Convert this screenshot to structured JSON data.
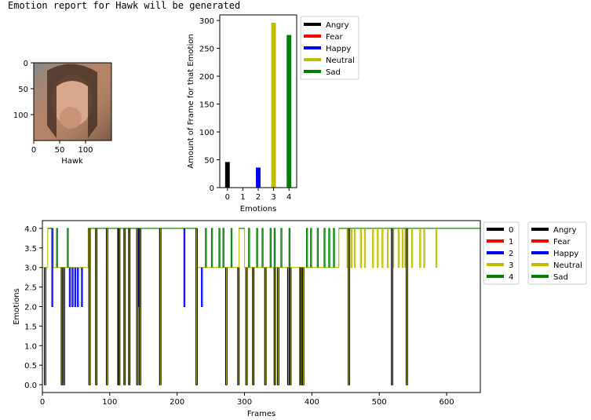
{
  "header": {
    "text": "Emotion report for Hawk will be generated"
  },
  "colors": {
    "black": "#000000",
    "red": "#ff0000",
    "blue": "#0000ff",
    "yellow": "#bfbf00",
    "green": "#008000"
  },
  "chart_data": [
    {
      "type": "image",
      "xlabel": "Hawk",
      "xticks": [
        0,
        50,
        100
      ],
      "yticks": [
        0,
        50,
        100
      ],
      "xlim": [
        0,
        150
      ],
      "ylim": [
        150,
        0
      ]
    },
    {
      "type": "bar",
      "categories": [
        0,
        1,
        2,
        3,
        4
      ],
      "values": [
        46,
        0,
        36,
        296,
        274
      ],
      "colors": [
        "#000000",
        "#ff0000",
        "#0000ff",
        "#bfbf00",
        "#008000"
      ],
      "xlabel": "Emotions",
      "ylabel": "Amount of Frame for that Emotion",
      "ylim": [
        0,
        310
      ],
      "yticks": [
        0,
        50,
        100,
        150,
        200,
        250,
        300
      ],
      "legend": {
        "placement": "right-outside",
        "entries": [
          "Angry",
          "Fear",
          "Happy",
          "Neutral",
          "Sad"
        ]
      }
    },
    {
      "type": "line",
      "xlabel": "Frames",
      "ylabel": "Emotions",
      "xlim": [
        0,
        650
      ],
      "ylim": [
        -0.2,
        4.2
      ],
      "xticks": [
        0,
        100,
        200,
        300,
        400,
        500,
        600
      ],
      "yticks": [
        0.0,
        0.5,
        1.0,
        1.5,
        2.0,
        2.5,
        3.0,
        3.5,
        4.0
      ],
      "series_colors": [
        "#000000",
        "#ff0000",
        "#0000ff",
        "#bfbf00",
        "#008000"
      ],
      "legend1": {
        "placement": "right-outside",
        "entries": [
          "0",
          "1",
          "2",
          "3",
          "4"
        ]
      },
      "legend2": {
        "placement": "right-outside",
        "entries": [
          "Angry",
          "Fear",
          "Happy",
          "Neutral",
          "Sad"
        ]
      },
      "segments": [
        {
          "from": 0,
          "to": 8,
          "value": 3
        },
        {
          "from": 8,
          "to": 16,
          "value": 4
        },
        {
          "from": 16,
          "to": 68,
          "value": 3
        },
        {
          "from": 68,
          "to": 230,
          "value": 4
        },
        {
          "from": 230,
          "to": 292,
          "value": 3
        },
        {
          "from": 292,
          "to": 300,
          "value": 4
        },
        {
          "from": 300,
          "to": 440,
          "value": 3
        },
        {
          "from": 440,
          "to": 650,
          "value": 4
        }
      ],
      "spikes_to_0": [
        3,
        28,
        31,
        69,
        79,
        95,
        112,
        113,
        121,
        128,
        140,
        144,
        174,
        228,
        272,
        290,
        302,
        312,
        330,
        344,
        349,
        364,
        367,
        382,
        384,
        386,
        454,
        518,
        540
      ],
      "spikes_to_2": [
        14,
        40,
        44,
        48,
        52,
        58,
        113,
        143,
        210,
        236
      ],
      "spikes_to_4": [
        12,
        21,
        37,
        80,
        86,
        92,
        100,
        126,
        131,
        135,
        147,
        158,
        167,
        173,
        188,
        192,
        196,
        216,
        226,
        242,
        251,
        262,
        268,
        280,
        306,
        318,
        326,
        338,
        344,
        354,
        366,
        392,
        398,
        408,
        418,
        425,
        432,
        600,
        606
      ],
      "spikes_to_3": [
        452,
        458,
        463,
        472,
        478,
        490,
        497,
        504,
        512,
        520,
        528,
        534,
        538,
        548,
        560,
        566,
        584
      ]
    }
  ]
}
